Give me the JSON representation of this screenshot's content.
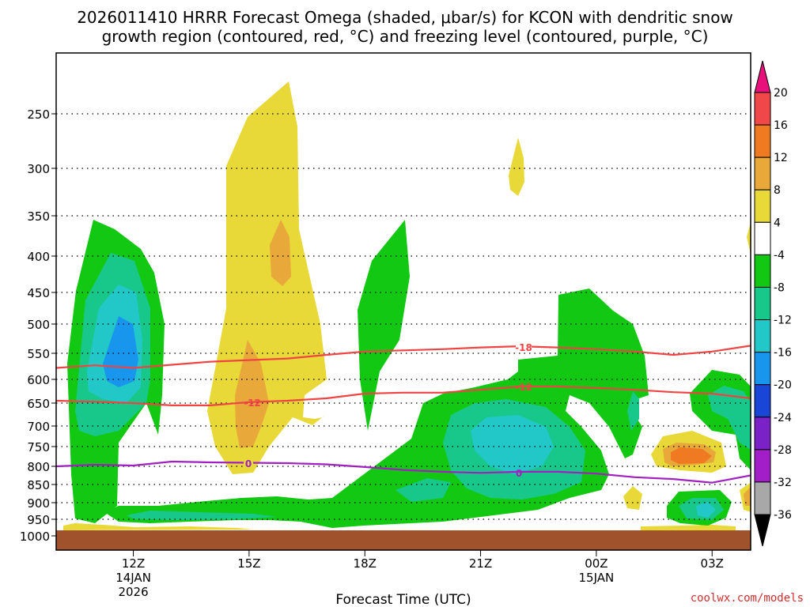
{
  "chart_data": {
    "type": "heatmap",
    "title_line1": "2026011410 HRRR Forecast Omega (shaded, μbar/s) for KCON with dendritic snow",
    "title_line2": "growth region (contoured, red, °C) and freezing level (contoured, purple, °C)",
    "xlabel": "Forecast Time (UTC)",
    "y_ticks": [
      "250",
      "300",
      "350",
      "400",
      "450",
      "500",
      "550",
      "600",
      "650",
      "700",
      "750",
      "800",
      "850",
      "900",
      "950",
      "1000"
    ],
    "y_values": [
      250,
      300,
      350,
      400,
      450,
      500,
      550,
      600,
      650,
      700,
      750,
      800,
      850,
      900,
      950,
      1000
    ],
    "x_ticks": [
      {
        "hour": 12,
        "label": "12Z",
        "sub1": "14JAN",
        "sub2": "2026"
      },
      {
        "hour": 15,
        "label": "15Z",
        "sub1": "",
        "sub2": ""
      },
      {
        "hour": 18,
        "label": "18Z",
        "sub1": "",
        "sub2": ""
      },
      {
        "hour": 21,
        "label": "21Z",
        "sub1": "",
        "sub2": ""
      },
      {
        "hour": 24,
        "label": "00Z",
        "sub1": "15JAN",
        "sub2": ""
      },
      {
        "hour": 27,
        "label": "03Z",
        "sub1": "",
        "sub2": ""
      }
    ],
    "xlim": [
      10,
      28
    ],
    "colorbar": {
      "labels": [
        "20",
        "16",
        "12",
        "8",
        "4",
        "-4",
        "-8",
        "-12",
        "-16",
        "-20",
        "-24",
        "-28",
        "-32",
        "-36"
      ],
      "colors": [
        "#e8107a",
        "#f04848",
        "#f07a22",
        "#e8a83a",
        "#e8d838",
        "#ffffff",
        "#12c812",
        "#18c88a",
        "#22c8c8",
        "#1896ee",
        "#1a46d8",
        "#7a22c8",
        "#a21ec8",
        "#a8a8a8",
        "#000000"
      ]
    },
    "contour_labels": {
      "dgz_upper": "-18",
      "dgz_lower": "-12",
      "freezing": "0"
    },
    "series": [
      {
        "name": "dgz_-18C",
        "color": "#ee4444",
        "points": [
          [
            10,
            578
          ],
          [
            11,
            573
          ],
          [
            12,
            578
          ],
          [
            13,
            572
          ],
          [
            14,
            566
          ],
          [
            15,
            563
          ],
          [
            16,
            560
          ],
          [
            17,
            553
          ],
          [
            18,
            547
          ],
          [
            19,
            545
          ],
          [
            20,
            543
          ],
          [
            21,
            540
          ],
          [
            22,
            538
          ],
          [
            23,
            540
          ],
          [
            24,
            543
          ],
          [
            25,
            547
          ],
          [
            26,
            553
          ],
          [
            27,
            547
          ],
          [
            28,
            537
          ]
        ]
      },
      {
        "name": "dgz_-12C",
        "color": "#ee4444",
        "points": [
          [
            10,
            645
          ],
          [
            11,
            647
          ],
          [
            12,
            650
          ],
          [
            13,
            655
          ],
          [
            14,
            655
          ],
          [
            15,
            648
          ],
          [
            16,
            645
          ],
          [
            17,
            640
          ],
          [
            18,
            630
          ],
          [
            19,
            628
          ],
          [
            20,
            628
          ],
          [
            21,
            622
          ],
          [
            22,
            615
          ],
          [
            23,
            615
          ],
          [
            24,
            618
          ],
          [
            25,
            622
          ],
          [
            26,
            627
          ],
          [
            27,
            630
          ],
          [
            28,
            640
          ]
        ]
      },
      {
        "name": "freezing_0C",
        "color": "#a020c0",
        "points": [
          [
            10,
            800
          ],
          [
            11,
            796
          ],
          [
            12,
            798
          ],
          [
            13,
            788
          ],
          [
            14,
            790
          ],
          [
            15,
            791
          ],
          [
            16,
            792
          ],
          [
            17,
            795
          ],
          [
            18,
            802
          ],
          [
            19,
            810
          ],
          [
            20,
            815
          ],
          [
            21,
            818
          ],
          [
            22,
            815
          ],
          [
            23,
            815
          ],
          [
            24,
            820
          ],
          [
            25,
            830
          ],
          [
            26,
            835
          ],
          [
            27,
            845
          ],
          [
            28,
            825
          ]
        ]
      }
    ]
  },
  "watermark": "coolwx.com/models"
}
